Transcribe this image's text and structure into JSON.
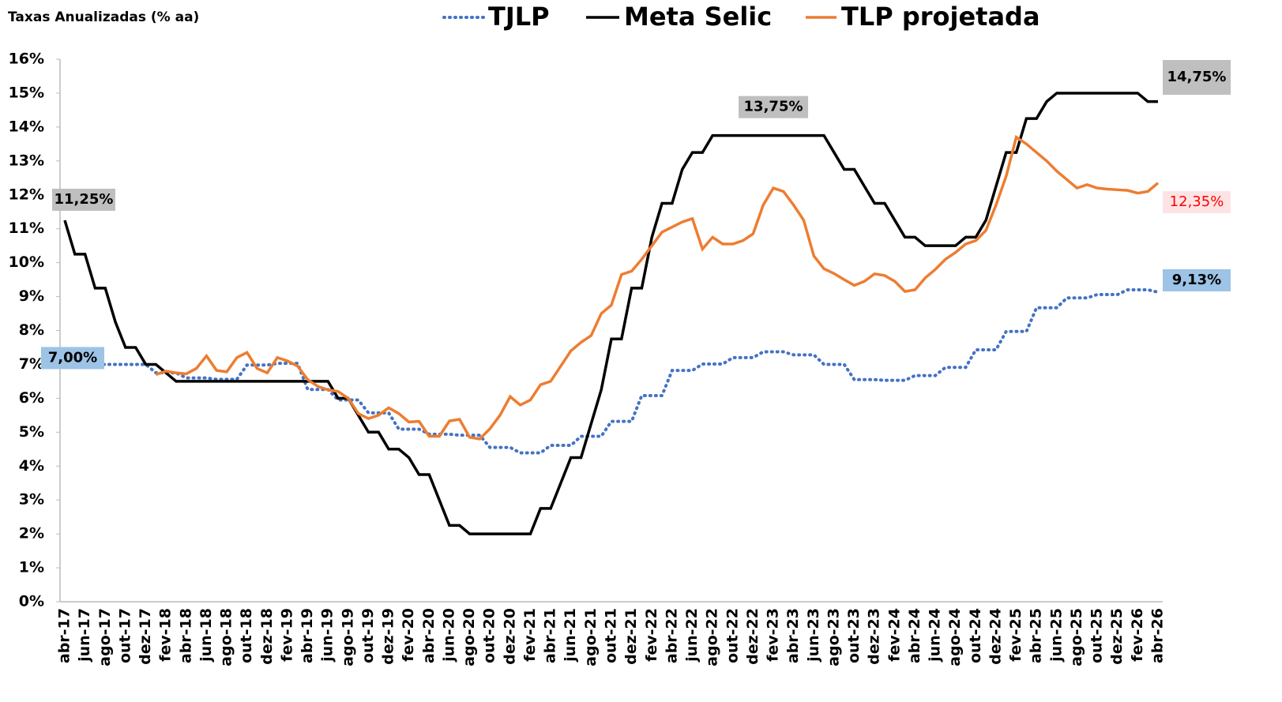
{
  "chart_data": {
    "type": "line",
    "subtitle": "Taxas Anualizadas (% aa)",
    "categories": [
      "abr-17",
      null,
      "jun-17",
      null,
      "ago-17",
      null,
      "out-17",
      null,
      "dez-17",
      null,
      "fev-18",
      null,
      "abr-18",
      null,
      "jun-18",
      null,
      "ago-18",
      null,
      "out-18",
      null,
      "dez-18",
      null,
      "fev-19",
      null,
      "abr-19",
      null,
      "jun-19",
      null,
      "ago-19",
      null,
      "out-19",
      null,
      "dez-19",
      null,
      "fev-20",
      null,
      "abr-20",
      null,
      "jun-20",
      null,
      "ago-20",
      null,
      "out-20",
      null,
      "dez-20",
      null,
      "fev-21",
      null,
      "abr-21",
      null,
      "jun-21",
      null,
      "ago-21",
      null,
      "out-21",
      null,
      "dez-21",
      null,
      "fev-22",
      null,
      "abr-22",
      null,
      "jun-22",
      null,
      "ago-22",
      null,
      "out-22",
      null,
      "dez-22",
      null,
      "fev-23",
      null,
      "abr-23",
      null,
      "jun-23",
      null,
      "ago-23",
      null,
      "out-23",
      null,
      "dez-23",
      null,
      "fev-24",
      null,
      "abr-24",
      null,
      "jun-24",
      null,
      "ago-24",
      null,
      "out-24",
      null,
      "dez-24",
      null,
      "fev-25",
      null,
      "abr-25",
      null,
      "jun-25",
      null,
      "ago-25",
      null,
      "out-25",
      null,
      "dez-25",
      null,
      "fev-26",
      null,
      "abr-26"
    ],
    "series": [
      {
        "name": "TJLP",
        "color": "#4472c4",
        "style": "dotted",
        "values": [
          7,
          7,
          7,
          7,
          7,
          7,
          7,
          7,
          7,
          6.75,
          6.75,
          6.75,
          6.6,
          6.6,
          6.6,
          6.56,
          6.56,
          6.56,
          6.98,
          6.98,
          6.98,
          7.03,
          7.03,
          7.03,
          6.26,
          6.26,
          6.26,
          5.95,
          5.95,
          5.95,
          5.57,
          5.57,
          5.57,
          5.09,
          5.09,
          5.09,
          4.94,
          4.94,
          4.94,
          4.91,
          4.91,
          4.91,
          4.55,
          4.55,
          4.55,
          4.39,
          4.39,
          4.39,
          4.61,
          4.61,
          4.61,
          4.88,
          4.88,
          4.88,
          5.32,
          5.32,
          5.32,
          6.08,
          6.08,
          6.08,
          6.82,
          6.82,
          6.82,
          7.01,
          7.01,
          7.01,
          7.2,
          7.2,
          7.2,
          7.37,
          7.37,
          7.37,
          7.28,
          7.28,
          7.28,
          7,
          7,
          7,
          6.55,
          6.55,
          6.55,
          6.53,
          6.53,
          6.53,
          6.67,
          6.67,
          6.67,
          6.91,
          6.91,
          6.91,
          7.43,
          7.43,
          7.43,
          7.97,
          7.97,
          7.97,
          8.67,
          8.67,
          8.67,
          8.96,
          8.96,
          8.96,
          9.06,
          9.06,
          9.06,
          9.2,
          9.2,
          9.2,
          9.13
        ],
        "value_labels": [
          "7,00%",
          null,
          null,
          null,
          null,
          null,
          null,
          null,
          null,
          null,
          null,
          null,
          null,
          null,
          null,
          null,
          null,
          null,
          null,
          null,
          null,
          null,
          null,
          null,
          null,
          null,
          null,
          null,
          null,
          null,
          null,
          null,
          null,
          null,
          null,
          null,
          null,
          null,
          null,
          null,
          null,
          null,
          null,
          null,
          null,
          null,
          null,
          null,
          null,
          null,
          null,
          null,
          null,
          null,
          null,
          null,
          null,
          null,
          null,
          null,
          null,
          null,
          null,
          null,
          null,
          null,
          null,
          null,
          null,
          null,
          null,
          null,
          null,
          null,
          null,
          null,
          null,
          null,
          null,
          null,
          null,
          null,
          null,
          null,
          null,
          null,
          null,
          null,
          null,
          null,
          null,
          null,
          null,
          null,
          null,
          null,
          null,
          null,
          null,
          null,
          null,
          null,
          null,
          null,
          null,
          null,
          null,
          null,
          "9,13%"
        ]
      },
      {
        "name": "Meta Selic",
        "color": "#000000",
        "style": "solid",
        "values": [
          11.25,
          10.25,
          10.25,
          9.25,
          9.25,
          8.25,
          7.5,
          7.5,
          7,
          7,
          6.75,
          6.5,
          6.5,
          6.5,
          6.5,
          6.5,
          6.5,
          6.5,
          6.5,
          6.5,
          6.5,
          6.5,
          6.5,
          6.5,
          6.5,
          6.5,
          6.5,
          6,
          6,
          5.5,
          5,
          5,
          4.5,
          4.5,
          4.25,
          3.75,
          3.75,
          3,
          2.25,
          2.25,
          2,
          2,
          2,
          2,
          2,
          2,
          2,
          2.75,
          2.75,
          3.5,
          4.25,
          4.25,
          5.25,
          6.25,
          7.75,
          7.75,
          9.25,
          9.25,
          10.75,
          11.75,
          11.75,
          12.75,
          13.25,
          13.25,
          13.75,
          13.75,
          13.75,
          13.75,
          13.75,
          13.75,
          13.75,
          13.75,
          13.75,
          13.75,
          13.75,
          13.75,
          13.25,
          12.75,
          12.75,
          12.25,
          11.75,
          11.75,
          11.25,
          10.75,
          10.75,
          10.5,
          10.5,
          10.5,
          10.5,
          10.75,
          10.75,
          11.25,
          12.25,
          13.25,
          13.25,
          14.25,
          14.25,
          14.75,
          15,
          15,
          15,
          15,
          15,
          15,
          15,
          15,
          15,
          14.75,
          14.75
        ],
        "value_labels": [
          "11,25%",
          null,
          null,
          null,
          null,
          null,
          null,
          null,
          null,
          null,
          null,
          null,
          null,
          null,
          null,
          null,
          null,
          null,
          null,
          null,
          null,
          null,
          null,
          null,
          null,
          null,
          null,
          null,
          null,
          null,
          null,
          null,
          null,
          null,
          null,
          null,
          null,
          null,
          null,
          null,
          null,
          null,
          null,
          null,
          null,
          null,
          null,
          null,
          null,
          null,
          null,
          null,
          null,
          null,
          null,
          null,
          null,
          null,
          null,
          null,
          null,
          null,
          null,
          null,
          null,
          null,
          null,
          null,
          null,
          null,
          "13,75%",
          null,
          null,
          null,
          null,
          null,
          null,
          null,
          null,
          null,
          null,
          null,
          null,
          null,
          null,
          null,
          null,
          null,
          null,
          null,
          null,
          null,
          null,
          null,
          null,
          null,
          null,
          null,
          null,
          null,
          null,
          null,
          null,
          null,
          null,
          null,
          null,
          null,
          "14,75%"
        ]
      },
      {
        "name": "TLP projetada",
        "color": "#ed7d31",
        "style": "solid",
        "values": [
          null,
          null,
          null,
          null,
          null,
          null,
          null,
          null,
          null,
          6.7,
          6.8,
          6.75,
          6.72,
          6.88,
          7.25,
          6.82,
          6.78,
          7.2,
          7.35,
          6.88,
          6.75,
          7.2,
          7.1,
          6.95,
          6.55,
          6.35,
          6.25,
          6.2,
          6,
          5.55,
          5.4,
          5.5,
          5.72,
          5.55,
          5.3,
          5.32,
          4.88,
          4.88,
          5.33,
          5.38,
          4.85,
          4.8,
          5.1,
          5.5,
          6.05,
          5.8,
          5.95,
          6.4,
          6.5,
          6.95,
          7.4,
          7.65,
          7.85,
          8.5,
          8.75,
          9.65,
          9.75,
          10.1,
          10.5,
          10.9,
          11.05,
          11.2,
          11.3,
          10.4,
          10.75,
          10.55,
          10.55,
          10.65,
          10.85,
          11.7,
          12.2,
          12.1,
          11.7,
          11.25,
          10.2,
          9.82,
          9.68,
          9.5,
          9.33,
          9.45,
          9.67,
          9.62,
          9.45,
          9.15,
          9.2,
          9.55,
          9.8,
          10.1,
          10.3,
          10.55,
          10.65,
          10.95,
          11.7,
          12.55,
          13.7,
          13.5,
          13.25,
          13,
          12.7,
          12.45,
          12.2,
          12.3,
          12.2,
          12.17,
          12.15,
          12.13,
          12.05,
          12.1,
          12.35
        ],
        "value_labels": [
          null,
          null,
          null,
          null,
          null,
          null,
          null,
          null,
          null,
          null,
          null,
          null,
          null,
          null,
          null,
          null,
          null,
          null,
          null,
          null,
          null,
          null,
          null,
          null,
          null,
          null,
          null,
          null,
          null,
          null,
          null,
          null,
          null,
          null,
          null,
          null,
          null,
          null,
          null,
          null,
          null,
          null,
          null,
          null,
          null,
          null,
          null,
          null,
          null,
          null,
          null,
          null,
          null,
          null,
          null,
          null,
          null,
          null,
          null,
          null,
          null,
          null,
          null,
          null,
          null,
          null,
          null,
          null,
          null,
          null,
          null,
          null,
          null,
          null,
          null,
          null,
          null,
          null,
          null,
          null,
          null,
          null,
          null,
          null,
          null,
          null,
          null,
          null,
          null,
          null,
          null,
          null,
          null,
          null,
          null,
          null,
          null,
          null,
          null,
          null,
          null,
          null,
          null,
          null,
          null,
          null,
          null,
          null,
          "12,35%"
        ]
      }
    ],
    "ylim": [
      0,
      16
    ],
    "yticks": [
      {
        "value": 0,
        "label": "0%"
      },
      {
        "value": 1,
        "label": "1%"
      },
      {
        "value": 2,
        "label": "2%"
      },
      {
        "value": 3,
        "label": "3%"
      },
      {
        "value": 4,
        "label": "4%"
      },
      {
        "value": 5,
        "label": "5%"
      },
      {
        "value": 6,
        "label": "6%"
      },
      {
        "value": 7,
        "label": "7%"
      },
      {
        "value": 8,
        "label": "8%"
      },
      {
        "value": 9,
        "label": "9%"
      },
      {
        "value": 10,
        "label": "10%"
      },
      {
        "value": 11,
        "label": "11%"
      },
      {
        "value": 12,
        "label": "12%"
      },
      {
        "value": 13,
        "label": "13%"
      },
      {
        "value": 14,
        "label": "14%"
      },
      {
        "value": 15,
        "label": "15%"
      },
      {
        "value": 16,
        "label": "16%"
      }
    ],
    "grid": false,
    "legend": "top"
  }
}
